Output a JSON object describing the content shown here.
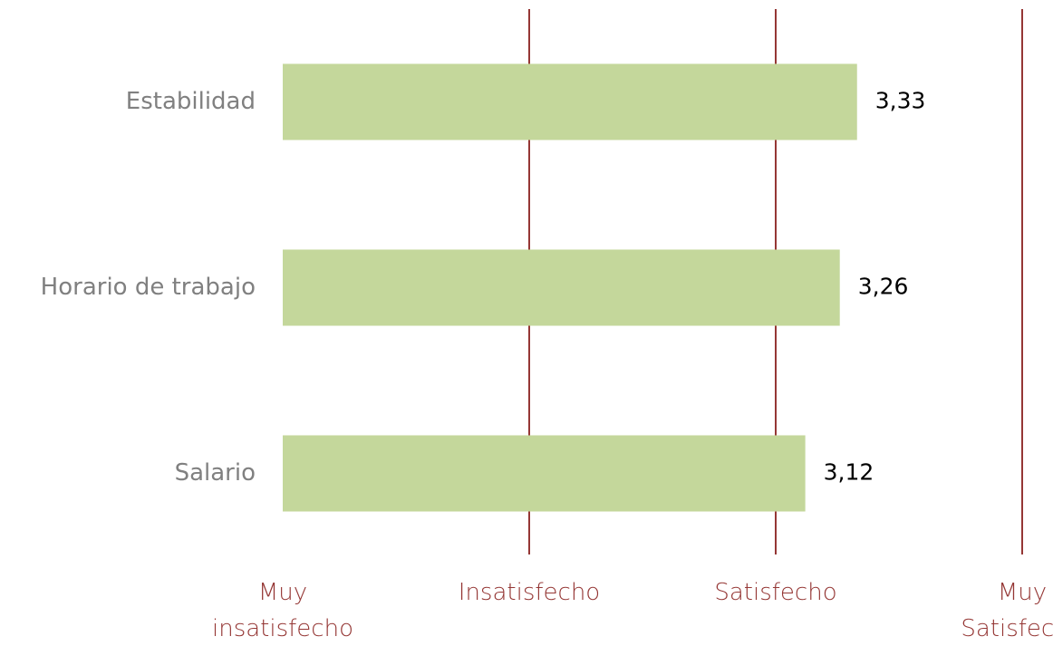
{
  "chart_data": {
    "type": "bar",
    "orientation": "horizontal",
    "categories": [
      "Estabilidad",
      "Horario de trabajo",
      "Salario"
    ],
    "values": [
      3.33,
      3.26,
      3.12
    ],
    "value_labels": [
      "3,33",
      "3,26",
      "3,12"
    ],
    "color": "#c4d79b",
    "xlim": [
      1,
      4
    ],
    "xticks": [
      {
        "value": 1,
        "label": "Muy insatisfecho"
      },
      {
        "value": 2,
        "label": "Insatisfecho"
      },
      {
        "value": 3,
        "label": "Satisfecho"
      },
      {
        "value": 4,
        "label": "Muy Satisfecho"
      }
    ],
    "grid": true,
    "grid_color": "#953735"
  }
}
